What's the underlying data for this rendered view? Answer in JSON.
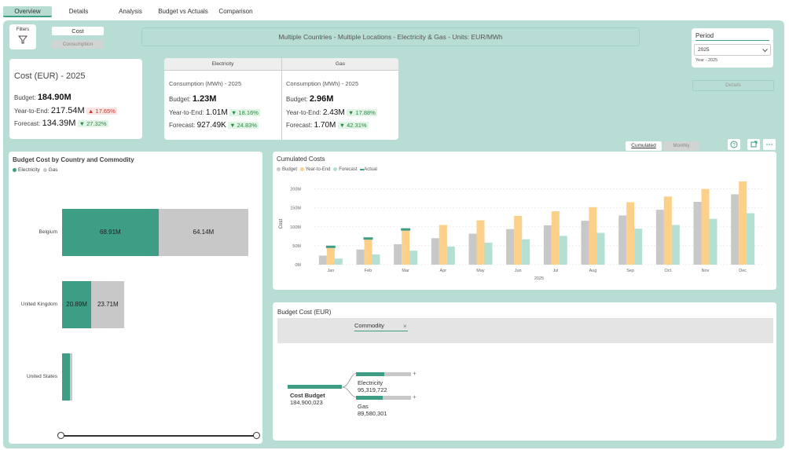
{
  "tabs": [
    {
      "label": "Overview",
      "active": true
    },
    {
      "label": "Details",
      "active": false
    },
    {
      "label": "Analysis",
      "active": false
    },
    {
      "label": "Budget vs Actuals",
      "active": false
    },
    {
      "label": "Comparison",
      "active": false
    }
  ],
  "filters": {
    "label": "Filters",
    "icon": "filter-icon"
  },
  "toggle": {
    "cost": "Cost",
    "consumption": "Consumption",
    "selected": "Cost"
  },
  "header_title": "Multiple Countries - Multiple Locations - Electricity & Gas - Units: EUR/MWh",
  "period": {
    "label": "Period",
    "value": "2025",
    "sub": "Year - 2025"
  },
  "details_button": "Details",
  "cost_card": {
    "title": "Cost (EUR) - 2025",
    "budget_label": "Budget:",
    "budget_value": "184.90M",
    "ytd_label": "Year-to-End:",
    "ytd_value": "217.54M",
    "ytd_delta": "▲ 17.65%",
    "forecast_label": "Forecast:",
    "forecast_value": "134.39M",
    "forecast_delta": "▼ 27.32%"
  },
  "electricity_card": {
    "header": "Electricity",
    "title": "Consumption (MWh) - 2025",
    "budget_label": "Budget:",
    "budget_value": "1.23M",
    "ytd_label": "Year-to-End:",
    "ytd_value": "1.01M",
    "ytd_delta": "▼ 18.16%",
    "forecast_label": "Forecast:",
    "forecast_value": "927.49K",
    "forecast_delta": "▼ 24.83%"
  },
  "gas_card": {
    "header": "Gas",
    "title": "Consumption (MWh) - 2025",
    "budget_label": "Budget:",
    "budget_value": "2.96M",
    "ytd_label": "Year-to-End:",
    "ytd_value": "2.43M",
    "ytd_delta": "▼ 17.88%",
    "forecast_label": "Forecast:",
    "forecast_value": "1.70M",
    "forecast_delta": "▼ 42.31%"
  },
  "view_toggle": {
    "cumulated": "Cumulated",
    "monthly": "Monthly",
    "selected": "Cumulated"
  },
  "visual_icons": [
    "help-icon",
    "expand-icon",
    "more-icon"
  ],
  "budget_by_country": {
    "title": "Budget Cost by Country and Commodity",
    "legend": [
      "Electricity",
      "Gas"
    ],
    "colors": {
      "Electricity": "#3d9e85",
      "Gas": "#c8c8c8"
    },
    "rows": [
      {
        "country": "Belgium",
        "electricity": 68.91,
        "gas": 64.14,
        "electricity_label": "68.91M",
        "gas_label": "64.14M"
      },
      {
        "country": "United Kingdom",
        "electricity": 20.89,
        "gas": 23.71,
        "electricity_label": "20.89M",
        "gas_label": "23.71M"
      },
      {
        "country": "United States",
        "electricity": 5.5,
        "gas": 1.8,
        "electricity_label": "",
        "gas_label": ""
      }
    ]
  },
  "chart_data": {
    "type": "bar",
    "title": "Cumulated Costs",
    "xlabel": "2025",
    "ylabel": "Cost",
    "ylim": [
      0,
      220
    ],
    "yticks": [
      "0M",
      "50M",
      "100M",
      "150M",
      "200M"
    ],
    "categories": [
      "Jan",
      "Feb",
      "Mar",
      "Apr",
      "May",
      "Jun",
      "Jul",
      "Aug",
      "Sep",
      "Oct",
      "Nov",
      "Dec"
    ],
    "series": [
      {
        "name": "Budget",
        "color": "#c8c8c8",
        "values": [
          24,
          40,
          54,
          70,
          82,
          94,
          104,
          116,
          130,
          145,
          166,
          186
        ]
      },
      {
        "name": "Year-to-End",
        "color": "#fdd08a",
        "values": [
          44,
          66,
          90,
          105,
          117,
          129,
          141,
          152,
          165,
          180,
          200,
          220
        ]
      },
      {
        "name": "Forecast",
        "color": "#b3e0d3",
        "values": [
          16,
          27,
          37,
          48,
          58,
          67,
          76,
          84,
          95,
          105,
          121,
          136
        ]
      },
      {
        "name": "Actual",
        "color": "#3d9e85",
        "values": [
          4,
          4,
          4,
          null,
          null,
          null,
          null,
          null,
          null,
          null,
          null,
          null
        ]
      }
    ],
    "grid": true,
    "legend_position": "top-left"
  },
  "decomp": {
    "title": "Budget Cost (EUR)",
    "filter_label": "Commodity",
    "root_label": "Cost Budget",
    "root_value": "184,900,023",
    "children": [
      {
        "label": "Electricity",
        "value": "95,319,722",
        "fraction": 0.52
      },
      {
        "label": "Gas",
        "value": "89,580,301",
        "fraction": 0.48
      }
    ]
  }
}
